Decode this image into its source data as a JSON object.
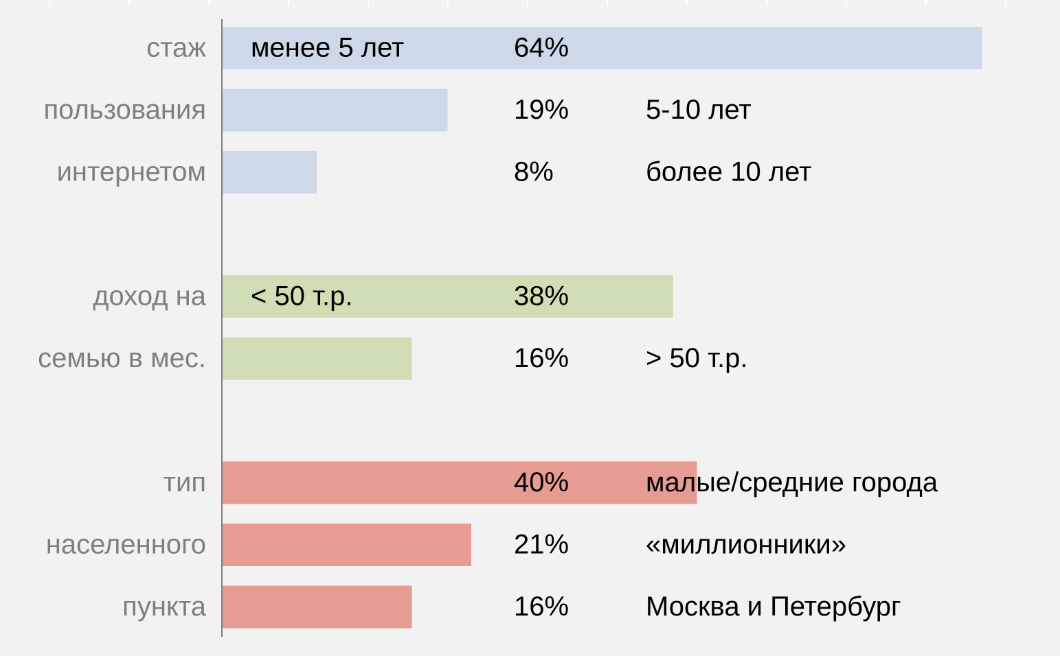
{
  "chart_data": {
    "type": "bar",
    "orientation": "horizontal",
    "xlim": [
      0,
      70
    ],
    "groups": [
      {
        "labels": [
          "стаж",
          "пользования",
          "интернетом"
        ],
        "color": "#cdd8e8",
        "categories": [
          "менее 5 лет",
          "5-10 лет",
          "более 10 лет"
        ],
        "label_inside": [
          true,
          false,
          false
        ],
        "values": [
          64,
          19,
          8
        ],
        "value_labels": [
          "64%",
          "19%",
          "8%"
        ]
      },
      {
        "labels": [
          "доход на",
          "семью в мес."
        ],
        "color": "#d0deb6",
        "categories": [
          "< 50 т.р.",
          "> 50 т.р."
        ],
        "label_inside": [
          true,
          false
        ],
        "values": [
          38,
          16
        ],
        "value_labels": [
          "38%",
          "16%"
        ]
      },
      {
        "labels": [
          "тип",
          "населенного",
          "пункта"
        ],
        "color": "#e69b93",
        "categories": [
          "малые/средние города",
          "«миллионники»",
          "Москва и Петербург"
        ],
        "label_inside": [
          false,
          false,
          false
        ],
        "values": [
          40,
          21,
          16
        ],
        "value_labels": [
          "40%",
          "21%",
          "16%"
        ]
      }
    ]
  }
}
